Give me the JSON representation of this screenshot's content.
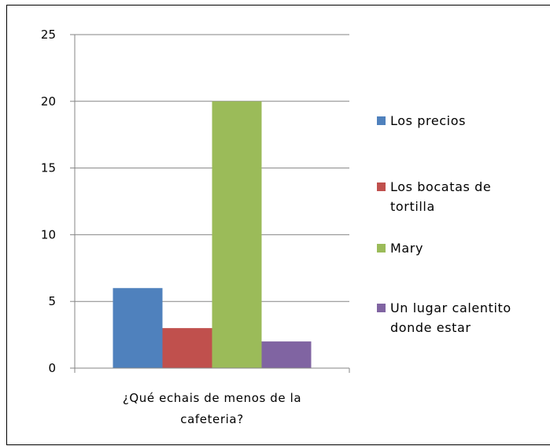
{
  "chart_data": {
    "type": "bar",
    "categories": [
      "¿Qué echais de menos de la cafeteria?"
    ],
    "category_label_lines": [
      "¿Qué echais de menos de la",
      "cafeteria?"
    ],
    "series": [
      {
        "name": "Los precios",
        "name_lines": [
          "Los precios"
        ],
        "values": [
          6
        ],
        "color": "#4f81bd"
      },
      {
        "name": "Los bocatas de tortilla",
        "name_lines": [
          "Los bocatas de",
          "tortilla"
        ],
        "values": [
          3
        ],
        "color": "#c0504d"
      },
      {
        "name": "Mary",
        "name_lines": [
          "Mary"
        ],
        "values": [
          20
        ],
        "color": "#9bbb59"
      },
      {
        "name": "Un lugar calentito donde estar",
        "name_lines": [
          "Un lugar calentito",
          "donde estar"
        ],
        "values": [
          2
        ],
        "color": "#8064a2"
      }
    ],
    "yticks": [
      "0",
      "5",
      "10",
      "15",
      "20",
      "25"
    ],
    "ylim": [
      0,
      25
    ],
    "ystep": 5,
    "grid": true,
    "legend_position": "right",
    "title": "",
    "xlabel": "",
    "ylabel": ""
  }
}
